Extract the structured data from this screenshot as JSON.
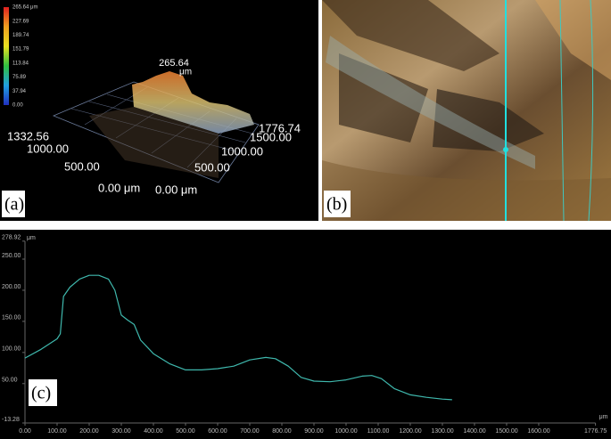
{
  "panel_a": {
    "label": "(a)",
    "colorbar_labels": [
      "265.64 μm",
      "227.69",
      "189.74",
      "151.79",
      "113.84",
      "75.89",
      "37.94",
      "0.00"
    ],
    "peak_label": "265.64",
    "peak_unit": "μm",
    "axis_labels_left": [
      "1332.56",
      "1000.00",
      "500.00",
      "0.00 μm"
    ],
    "axis_labels_right": [
      "0.00 μm",
      "500.00",
      "1000.00",
      "1500.00",
      "1776.74"
    ]
  },
  "panel_b": {
    "label": "(b)"
  },
  "chart_data": {
    "type": "line",
    "panel_label": "(c)",
    "y_unit": "μm",
    "x_unit": "μm",
    "color": "#3fb8ad",
    "x": [
      0,
      50,
      100,
      110,
      120,
      140,
      170,
      200,
      230,
      260,
      280,
      300,
      320,
      340,
      360,
      400,
      450,
      500,
      550,
      600,
      650,
      700,
      750,
      780,
      820,
      860,
      900,
      950,
      1000,
      1050,
      1080,
      1110,
      1150,
      1200,
      1250,
      1300,
      1330
    ],
    "values": [
      91,
      105,
      122,
      130,
      190,
      205,
      218,
      224,
      224,
      218,
      200,
      160,
      152,
      145,
      120,
      98,
      82,
      72,
      72,
      74,
      78,
      88,
      92,
      90,
      78,
      60,
      54,
      53,
      56,
      62,
      63,
      58,
      42,
      32,
      28,
      25,
      24
    ],
    "xlim": [
      0,
      1776.75
    ],
    "ylim": [
      -13.28,
      278.92
    ],
    "xticks": [
      {
        "value": 0,
        "label": "0.00"
      },
      {
        "value": 100,
        "label": "100.00"
      },
      {
        "value": 200,
        "label": "200.00"
      },
      {
        "value": 300,
        "label": "300.00"
      },
      {
        "value": 400,
        "label": "400.00"
      },
      {
        "value": 500,
        "label": "500.00"
      },
      {
        "value": 600,
        "label": "600.00"
      },
      {
        "value": 700,
        "label": "700.00"
      },
      {
        "value": 800,
        "label": "800.00"
      },
      {
        "value": 900,
        "label": "900.00"
      },
      {
        "value": 1000,
        "label": "1000.00"
      },
      {
        "value": 1100,
        "label": "1100.00"
      },
      {
        "value": 1200,
        "label": "1200.00"
      },
      {
        "value": 1300,
        "label": "1300.00"
      },
      {
        "value": 1400,
        "label": "1400.00"
      },
      {
        "value": 1500,
        "label": "1500.00"
      },
      {
        "value": 1600,
        "label": "1600.00"
      },
      1776.75
    ],
    "yticks": [
      -13.28,
      {
        "value": 50,
        "label": "50.00"
      },
      {
        "value": 100,
        "label": "100.00"
      },
      {
        "value": 150,
        "label": "150.00"
      },
      {
        "value": 200,
        "label": "200.00"
      },
      {
        "value": 250,
        "label": "250.00"
      },
      278.92
    ]
  }
}
